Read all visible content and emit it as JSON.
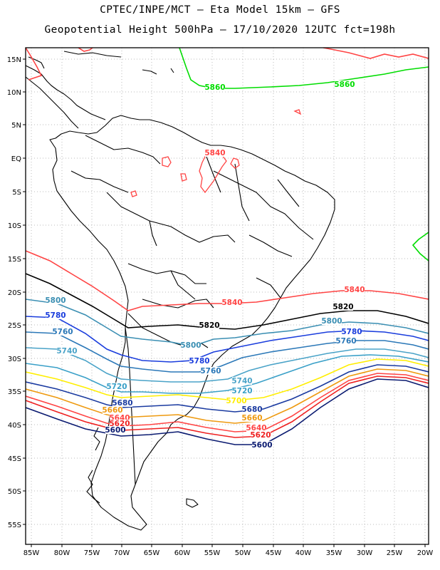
{
  "header": {
    "title_line1": "CPTEC/INPE/MCT –  Eta Model 15km – GFS",
    "title_line2": "Geopotential Height 500hPa – 17/10/2020 12UTC fct=198h"
  },
  "axes": {
    "lat_labels": [
      "15N",
      "10N",
      "5N",
      "EQ",
      "5S",
      "10S",
      "15S",
      "20S",
      "25S",
      "30S",
      "35S",
      "40S",
      "45S",
      "50S",
      "55S"
    ],
    "lon_labels": [
      "85W",
      "80W",
      "75W",
      "70W",
      "65W",
      "60W",
      "55W",
      "50W",
      "45W",
      "40W",
      "35W",
      "30W",
      "25W",
      "20W"
    ]
  },
  "colors": {
    "c5860": "#00dd00",
    "c5840": "#ff4444",
    "c5820": "#000000",
    "c5800": "#3b8fb3",
    "c5780": "#1a3ddd",
    "c5760": "#2b78b8",
    "c5740": "#4aa3c8",
    "c5720": "#3aa0c8",
    "c5700": "#ffee00",
    "c5680": "#1a3aa0",
    "c5660": "#ee9a10",
    "c5640": "#ff4444",
    "c5620": "#ee2020",
    "c5600": "#0a1a70"
  },
  "contour_labels": {
    "l5860_n": "5860",
    "l5860_ne": "5860",
    "l5840_am": "5840",
    "l5840_e": "5840",
    "l5840_mid": "5840",
    "l5820_e": "5820",
    "l5820_mid": "5820",
    "l5800_w": "5800",
    "l5800_mid": "5800",
    "l5800_e": "5800",
    "l5780_w": "5780",
    "l5780_mid": "5780",
    "l5780_e": "5780",
    "l5760_w": "5760",
    "l5760_mid": "5760",
    "l5760_e": "5760",
    "l5740_w": "5740",
    "l5740_mid": "5740",
    "l5720_w": "5720",
    "l5720_mid": "5720",
    "l5700_mid": "5700",
    "l5680_w": "5680",
    "l5680_mid": "5680",
    "l5660_w": "5660",
    "l5660_mid": "5660",
    "l5640_w": "5640",
    "l5640_mid": "5640",
    "l5620_w": "5620",
    "l5620_mid": "5620",
    "l5600_w": "5600",
    "l5600_mid": "5600"
  }
}
